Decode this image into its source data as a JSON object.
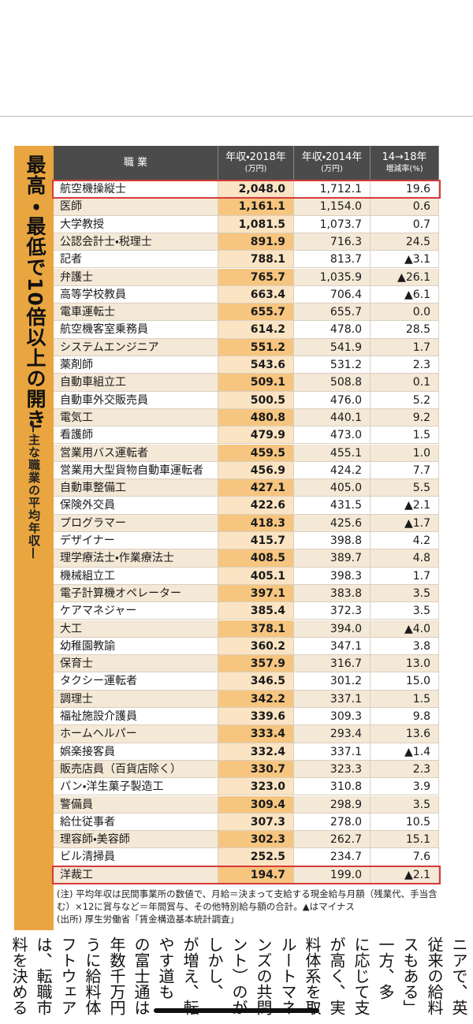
{
  "sidebar": {
    "title": "最高・最低で10倍以上の開き",
    "subtitle": "—主な職業の平均年収—"
  },
  "table": {
    "header": [
      {
        "title": "職 業"
      },
      {
        "title": "年収・2018年",
        "unit": "(万円)"
      },
      {
        "title": "年収・2014年",
        "unit": "(万円)"
      },
      {
        "title": "14→18年",
        "unit": "増減率(%)"
      }
    ],
    "rows": [
      [
        "航空機操縦士",
        "2,048.0",
        "1,712.1",
        "19.6"
      ],
      [
        "医師",
        "1,161.1",
        "1,154.0",
        "0.6"
      ],
      [
        "大学教授",
        "1,081.5",
        "1,073.7",
        "0.7"
      ],
      [
        "公認会計士・税理士",
        "891.9",
        "716.3",
        "24.5"
      ],
      [
        "記者",
        "788.1",
        "813.7",
        "▲3.1"
      ],
      [
        "弁護士",
        "765.7",
        "1,035.9",
        "▲26.1"
      ],
      [
        "高等学校教員",
        "663.4",
        "706.4",
        "▲6.1"
      ],
      [
        "電車運転士",
        "655.7",
        "655.7",
        "0.0"
      ],
      [
        "航空機客室乗務員",
        "614.2",
        "478.0",
        "28.5"
      ],
      [
        "システムエンジニア",
        "551.2",
        "541.9",
        "1.7"
      ],
      [
        "薬剤師",
        "543.6",
        "531.2",
        "2.3"
      ],
      [
        "自動車組立工",
        "509.1",
        "508.8",
        "0.1"
      ],
      [
        "自動車外交販売員",
        "500.5",
        "476.0",
        "5.2"
      ],
      [
        "電気工",
        "480.8",
        "440.1",
        "9.2"
      ],
      [
        "看護師",
        "479.9",
        "473.0",
        "1.5"
      ],
      [
        "営業用バス運転者",
        "459.5",
        "455.1",
        "1.0"
      ],
      [
        "営業用大型貨物自動車運転者",
        "456.9",
        "424.2",
        "7.7"
      ],
      [
        "自動車整備工",
        "427.1",
        "405.0",
        "5.5"
      ],
      [
        "保険外交員",
        "422.6",
        "431.5",
        "▲2.1"
      ],
      [
        "プログラマー",
        "418.3",
        "425.6",
        "▲1.7"
      ],
      [
        "デザイナー",
        "415.7",
        "398.8",
        "4.2"
      ],
      [
        "理学療法士・作業療法士",
        "408.5",
        "389.7",
        "4.8"
      ],
      [
        "機械組立工",
        "405.1",
        "398.3",
        "1.7"
      ],
      [
        "電子計算機オペレーター",
        "397.1",
        "383.8",
        "3.5"
      ],
      [
        "ケアマネジャー",
        "385.4",
        "372.3",
        "3.5"
      ],
      [
        "大工",
        "378.1",
        "394.0",
        "▲4.0"
      ],
      [
        "幼稚園教諭",
        "360.2",
        "347.1",
        "3.8"
      ],
      [
        "保育士",
        "357.9",
        "316.7",
        "13.0"
      ],
      [
        "タクシー運転者",
        "346.5",
        "301.2",
        "15.0"
      ],
      [
        "調理士",
        "342.2",
        "337.1",
        "1.5"
      ],
      [
        "福祉施設介護員",
        "339.6",
        "309.3",
        "9.8"
      ],
      [
        "ホームヘルパー",
        "333.4",
        "293.4",
        "13.6"
      ],
      [
        "娯楽接客員",
        "332.4",
        "337.1",
        "▲1.4"
      ],
      [
        "販売店員（百貨店除く）",
        "330.7",
        "323.3",
        "2.3"
      ],
      [
        "パン・洋生菓子製造工",
        "323.0",
        "310.8",
        "3.9"
      ],
      [
        "警備員",
        "309.4",
        "298.9",
        "3.5"
      ],
      [
        "給仕従事者",
        "307.3",
        "278.0",
        "10.5"
      ],
      [
        "理容師・美容師",
        "302.3",
        "262.7",
        "15.1"
      ],
      [
        "ビル清掃員",
        "252.5",
        "234.7",
        "7.6"
      ],
      [
        "洋裁工",
        "194.7",
        "199.0",
        "▲2.1"
      ]
    ],
    "notes": [
      "(注) 平均年収は民間事業所の数値で、月給＝決まって支給する現金給与月額（残業代、手当含む）×12に賞与など＝年間賞与、その他特別給与額の合計。▲はマイナス",
      "(出所) 厚生労働省「賃金構造基本統計調査」"
    ]
  },
  "body_text": [
    "ニアで、英",
    "従来の給料",
    "スもある」",
    "一方、多",
    "に応じて支",
    "が高く、実",
    "料体系を取",
    "ルートマネ",
    "ンズの共問",
    "ント）のが",
    "しかし、",
    "が増え、転",
    "やす道も",
    "の富士通は",
    "年数千万円",
    "うに給料体",
    "フトウェア",
    "は、転職市",
    "料を決める"
  ]
}
